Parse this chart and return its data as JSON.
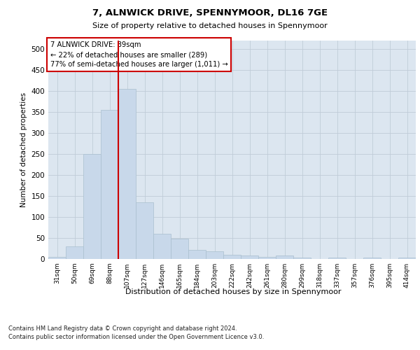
{
  "title": "7, ALNWICK DRIVE, SPENNYMOOR, DL16 7GE",
  "subtitle": "Size of property relative to detached houses in Spennymoor",
  "xlabel": "Distribution of detached houses by size in Spennymoor",
  "ylabel": "Number of detached properties",
  "footer_line1": "Contains HM Land Registry data © Crown copyright and database right 2024.",
  "footer_line2": "Contains public sector information licensed under the Open Government Licence v3.0.",
  "annotation_line1": "7 ALNWICK DRIVE: 89sqm",
  "annotation_line2": "← 22% of detached houses are smaller (289)",
  "annotation_line3": "77% of semi-detached houses are larger (1,011) →",
  "bar_color": "#c8d8ea",
  "bar_edge_color": "#aabfcf",
  "vline_color": "#cc0000",
  "annotation_box_color": "#ffffff",
  "annotation_box_edge": "#cc0000",
  "grid_color": "#c0ccd8",
  "background_color": "#dce6f0",
  "categories": [
    "31sqm",
    "50sqm",
    "69sqm",
    "88sqm",
    "107sqm",
    "127sqm",
    "146sqm",
    "165sqm",
    "184sqm",
    "203sqm",
    "222sqm",
    "242sqm",
    "261sqm",
    "280sqm",
    "299sqm",
    "318sqm",
    "337sqm",
    "357sqm",
    "376sqm",
    "395sqm",
    "414sqm"
  ],
  "values": [
    5,
    30,
    250,
    355,
    405,
    135,
    60,
    48,
    22,
    18,
    10,
    8,
    5,
    8,
    4,
    0,
    3,
    0,
    3,
    0,
    3
  ],
  "vline_x": 3.5,
  "ylim": [
    0,
    520
  ],
  "yticks": [
    0,
    50,
    100,
    150,
    200,
    250,
    300,
    350,
    400,
    450,
    500
  ]
}
